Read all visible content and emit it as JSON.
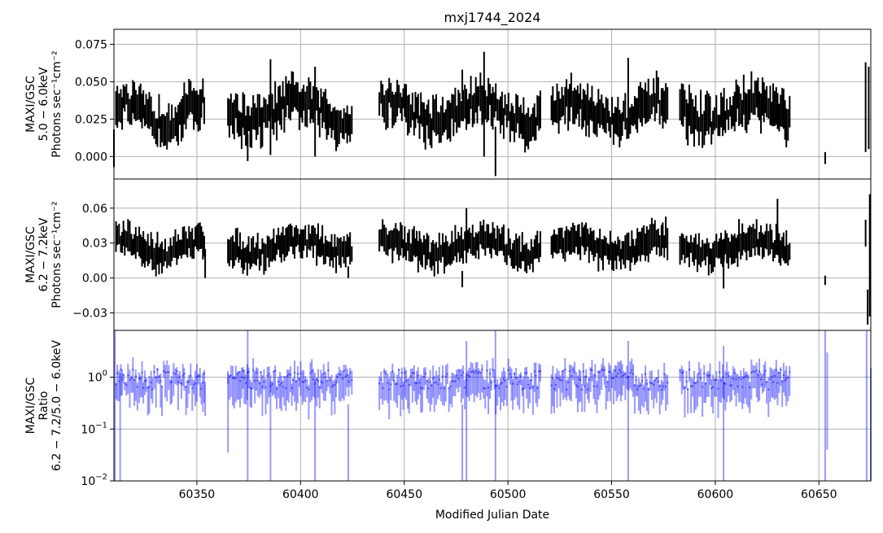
{
  "chart_data": {
    "type": "scatter",
    "title": "mxj1744_2024",
    "xlabel": "Modified Julian Date",
    "xlim": [
      60310,
      60675
    ],
    "x_ticks": [
      "60350",
      "60400",
      "60450",
      "60500",
      "60550",
      "60600",
      "60650"
    ],
    "grid": true,
    "colors": {
      "flux": "#000000",
      "ratio": "#0000ff"
    },
    "panels": [
      {
        "id": "soft",
        "ylabel": [
          "MAXI/GSC",
          "5.0 − 6.0keV",
          "Photons sec⁻¹cm⁻²"
        ],
        "scale": "linear",
        "ylim": [
          -0.015,
          0.085
        ],
        "y_ticks": [
          {
            "v": 0.0,
            "label": "0.000"
          },
          {
            "v": 0.025,
            "label": "0.025"
          },
          {
            "v": 0.05,
            "label": "0.050"
          },
          {
            "v": 0.075,
            "label": "0.075"
          }
        ],
        "base": 0.03,
        "amp": 0.007,
        "err": 0.011,
        "spikes": [
          {
            "x": 60310,
            "lo": -0.007,
            "hi": 0.018
          },
          {
            "x": 60374.5,
            "lo": -0.003,
            "hi": 0.015
          },
          {
            "x": 60385.5,
            "lo": 0.001,
            "hi": 0.065
          },
          {
            "x": 60407,
            "lo": 0.0,
            "hi": 0.06
          },
          {
            "x": 60478,
            "lo": 0.038,
            "hi": 0.058
          },
          {
            "x": 60488.5,
            "lo": 0.0,
            "hi": 0.07
          },
          {
            "x": 60494,
            "lo": -0.013,
            "hi": 0.02
          },
          {
            "x": 60558,
            "lo": 0.025,
            "hi": 0.066
          },
          {
            "x": 60653,
            "lo": -0.005,
            "hi": 0.003
          },
          {
            "x": 60672.5,
            "lo": 0.003,
            "hi": 0.063
          },
          {
            "x": 60674,
            "lo": 0.005,
            "hi": 0.06
          }
        ]
      },
      {
        "id": "hard",
        "ylabel": [
          "MAXI/GSC",
          "6.2 − 7.2keV",
          "Photons sec⁻¹cm⁻²"
        ],
        "scale": "linear",
        "ylim": [
          -0.045,
          0.085
        ],
        "y_ticks": [
          {
            "v": -0.03,
            "label": "−0.03"
          },
          {
            "v": 0.0,
            "label": "0.00"
          },
          {
            "v": 0.03,
            "label": "0.03"
          },
          {
            "v": 0.06,
            "label": "0.06"
          }
        ],
        "base": 0.027,
        "amp": 0.006,
        "err": 0.011,
        "spikes": [
          {
            "x": 60354,
            "lo": 0.0,
            "hi": 0.025
          },
          {
            "x": 60423,
            "lo": 0.0,
            "hi": 0.01
          },
          {
            "x": 60478,
            "lo": -0.008,
            "hi": 0.006
          },
          {
            "x": 60480,
            "lo": 0.03,
            "hi": 0.06
          },
          {
            "x": 60604,
            "lo": -0.009,
            "hi": 0.033
          },
          {
            "x": 60630,
            "lo": 0.025,
            "hi": 0.068
          },
          {
            "x": 60653,
            "lo": -0.006,
            "hi": 0.002
          },
          {
            "x": 60672.5,
            "lo": 0.027,
            "hi": 0.05
          },
          {
            "x": 60673.5,
            "lo": -0.04,
            "hi": -0.01
          },
          {
            "x": 60674.5,
            "lo": -0.033,
            "hi": 0.072
          }
        ]
      },
      {
        "id": "ratio",
        "ylabel": [
          "MAXI/GSC",
          "Ratio",
          "6.2 − 7.2/5.0 − 6.0keV"
        ],
        "scale": "log",
        "ylim": [
          0.01,
          8
        ],
        "y_ticks": [
          {
            "v": 0.01,
            "label": "10",
            "exp": "−2"
          },
          {
            "v": 0.1,
            "label": "10",
            "exp": "−1"
          },
          {
            "v": 1,
            "label": "10",
            "exp": "0"
          }
        ],
        "base": 0.9,
        "amp": 0.25,
        "err": 0.35,
        "spikes": [
          {
            "x": 60310.5,
            "lo": 0.01,
            "hi": 8
          },
          {
            "x": 60313,
            "lo": 0.01,
            "hi": 1.2
          },
          {
            "x": 60354,
            "lo": 0.18,
            "hi": 0.8
          },
          {
            "x": 60365,
            "lo": 0.035,
            "hi": 1.0
          },
          {
            "x": 60374.5,
            "lo": 0.01,
            "hi": 8
          },
          {
            "x": 60385.5,
            "lo": 0.01,
            "hi": 1.1
          },
          {
            "x": 60407,
            "lo": 0.01,
            "hi": 0.9
          },
          {
            "x": 60423,
            "lo": 0.01,
            "hi": 0.3
          },
          {
            "x": 60478,
            "lo": 0.01,
            "hi": 0.3
          },
          {
            "x": 60480,
            "lo": 0.01,
            "hi": 5
          },
          {
            "x": 60494,
            "lo": 0.01,
            "hi": 8
          },
          {
            "x": 60558,
            "lo": 0.01,
            "hi": 5
          },
          {
            "x": 60604,
            "lo": 0.01,
            "hi": 4
          },
          {
            "x": 60653,
            "lo": 0.01,
            "hi": 8
          },
          {
            "x": 60654,
            "lo": 0.04,
            "hi": 3
          },
          {
            "x": 60673,
            "lo": 0.01,
            "hi": 8
          },
          {
            "x": 60675,
            "lo": 0.01,
            "hi": 1.5
          }
        ]
      }
    ],
    "observation_segments": [
      [
        60311,
        60354
      ],
      [
        60365,
        60425
      ],
      [
        60438,
        60516
      ],
      [
        60521,
        60577
      ],
      [
        60583,
        60636
      ]
    ]
  }
}
